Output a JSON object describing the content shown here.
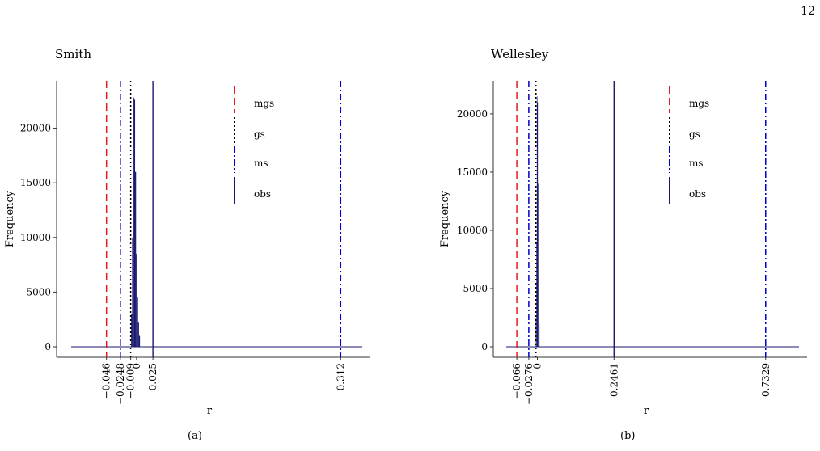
{
  "page_number": "12",
  "captions": [
    "(a)",
    "(b)"
  ],
  "chart_data": [
    {
      "type": "bar",
      "title": "Smith",
      "xlabel": "r",
      "ylabel": "Frequency",
      "ylim": [
        0,
        23000
      ],
      "y_ticks": [
        0,
        5000,
        10000,
        15000,
        20000
      ],
      "y_tick_labels": [
        "0",
        "5000",
        "10000",
        "15000",
        "20000"
      ],
      "xlim": [
        -0.1,
        0.345
      ],
      "histogram": {
        "color": "#191970",
        "bins": [
          {
            "x0": -0.0083,
            "x1": -0.0068,
            "count": 3000
          },
          {
            "x0": -0.0068,
            "x1": -0.0053,
            "count": 10000
          },
          {
            "x0": -0.0053,
            "x1": -0.0038,
            "count": 22800
          },
          {
            "x0": -0.0038,
            "x1": -0.0023,
            "count": 22600
          },
          {
            "x0": -0.0023,
            "x1": -0.0008,
            "count": 16000
          },
          {
            "x0": -0.0008,
            "x1": 0.0007,
            "count": 8500
          },
          {
            "x0": 0.0007,
            "x1": 0.0022,
            "count": 4500
          },
          {
            "x0": 0.0022,
            "x1": 0.0037,
            "count": 2200
          },
          {
            "x0": 0.0037,
            "x1": 0.0052,
            "count": 1000
          }
        ]
      },
      "reference_lines": [
        {
          "name": "mgs",
          "x": -0.046,
          "color": "#e41a1c",
          "style": "dashed"
        },
        {
          "name": "gs",
          "x": -0.009,
          "color": "#000000",
          "style": "dotted"
        },
        {
          "name": "ms",
          "x": -0.0248,
          "color": "#0000cd",
          "style": "dashdot"
        },
        {
          "name": "ms",
          "x": 0.312,
          "color": "#0000cd",
          "style": "dashdot"
        },
        {
          "name": "obs",
          "x": 0.025,
          "color": "#191970",
          "style": "solid"
        }
      ],
      "x_tick_labels": [
        {
          "x": -0.046,
          "label": "-0.046"
        },
        {
          "x": -0.0248,
          "label": "-0.0248"
        },
        {
          "x": -0.009,
          "label": "-0.009"
        },
        {
          "x": 0,
          "label": "0"
        },
        {
          "x": 0.025,
          "label": "0.025"
        },
        {
          "x": 0.312,
          "label": "0.312"
        }
      ],
      "legend": {
        "placement": "top-right",
        "entries": [
          {
            "label": "mgs",
            "color": "#e41a1c",
            "style": "dashed"
          },
          {
            "label": "gs",
            "color": "#000000",
            "style": "dotted"
          },
          {
            "label": "ms",
            "color": "#0000cd",
            "style": "dashdot"
          },
          {
            "label": "obs",
            "color": "#191970",
            "style": "solid"
          }
        ]
      }
    },
    {
      "type": "bar",
      "title": "Wellesley",
      "xlabel": "r",
      "ylabel": "Frequency",
      "ylim": [
        0,
        21800
      ],
      "y_ticks": [
        0,
        5000,
        10000,
        15000,
        20000
      ],
      "y_tick_labels": [
        "0",
        "5000",
        "10000",
        "15000",
        "20000"
      ],
      "xlim": [
        -0.1,
        0.84
      ],
      "histogram": {
        "color": "#191970",
        "bins": [
          {
            "x0": -0.0051,
            "x1": -0.0034,
            "count": 2500
          },
          {
            "x0": -0.0034,
            "x1": -0.0017,
            "count": 9000
          },
          {
            "x0": -0.0017,
            "x1": 0.0,
            "count": 21500
          },
          {
            "x0": 0.0,
            "x1": 0.0017,
            "count": 21000
          },
          {
            "x0": 0.0017,
            "x1": 0.0034,
            "count": 14000
          },
          {
            "x0": 0.0034,
            "x1": 0.0051,
            "count": 6000
          },
          {
            "x0": 0.0051,
            "x1": 0.0068,
            "count": 2000
          }
        ]
      },
      "reference_lines": [
        {
          "name": "mgs",
          "x": -0.066,
          "color": "#e41a1c",
          "style": "dashed"
        },
        {
          "name": "gs",
          "x": -0.0045,
          "color": "#000000",
          "style": "dotted"
        },
        {
          "name": "ms",
          "x": -0.0276,
          "color": "#0000cd",
          "style": "dashdot"
        },
        {
          "name": "ms",
          "x": 0.7329,
          "color": "#0000cd",
          "style": "dashdot"
        },
        {
          "name": "obs",
          "x": 0.2461,
          "color": "#191970",
          "style": "solid"
        }
      ],
      "x_tick_labels": [
        {
          "x": -0.066,
          "label": "-0.066"
        },
        {
          "x": -0.0276,
          "label": "-0.0276"
        },
        {
          "x": 0,
          "label": "0"
        },
        {
          "x": 0.2461,
          "label": "0.2461"
        },
        {
          "x": 0.7329,
          "label": "0.7329"
        }
      ],
      "legend": {
        "placement": "top-right",
        "entries": [
          {
            "label": "mgs",
            "color": "#e41a1c",
            "style": "dashed"
          },
          {
            "label": "gs",
            "color": "#000000",
            "style": "dotted"
          },
          {
            "label": "ms",
            "color": "#0000cd",
            "style": "dashdot"
          },
          {
            "label": "obs",
            "color": "#191970",
            "style": "solid"
          }
        ]
      }
    }
  ]
}
